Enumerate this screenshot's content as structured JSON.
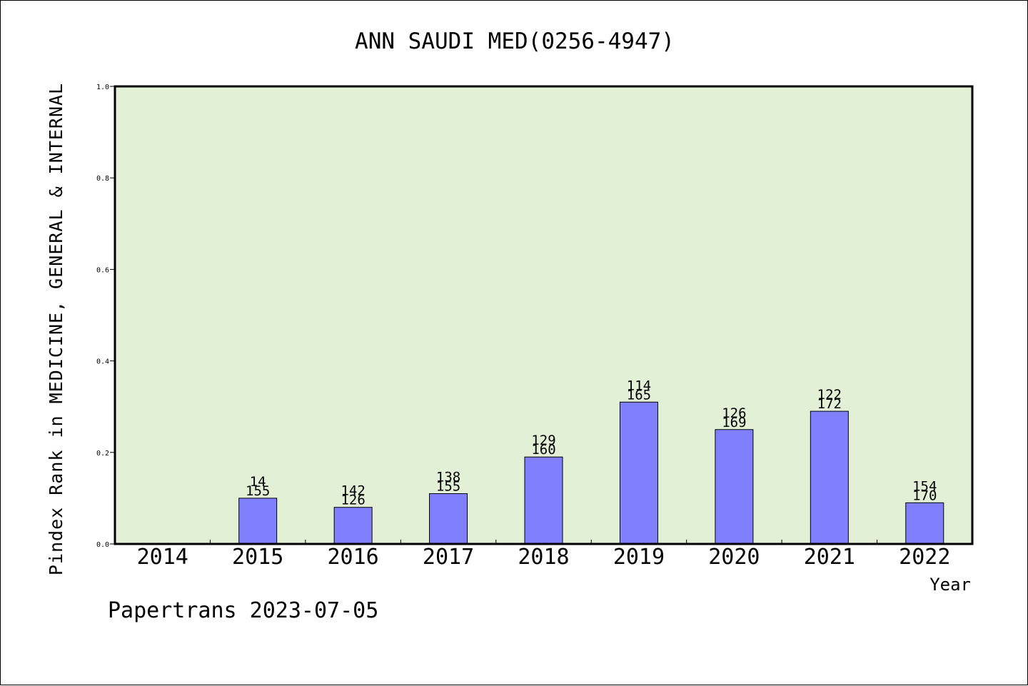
{
  "chart_data": {
    "type": "bar",
    "title": "ANN SAUDI MED(0256-4947)",
    "ylabel": "Pindex Rank in MEDICINE, GENERAL & INTERNAL",
    "xlabel": "Year",
    "ylim": [
      0,
      1.0
    ],
    "yticks": [
      "0.0",
      "0.2",
      "0.4",
      "0.6",
      "0.8",
      "1.0"
    ],
    "categories": [
      "2014",
      "2015",
      "2016",
      "2017",
      "2018",
      "2019",
      "2020",
      "2021",
      "2022"
    ],
    "values": [
      0,
      0.1,
      0.08,
      0.11,
      0.19,
      0.31,
      0.25,
      0.29,
      0.09
    ],
    "rank_labels": [
      "",
      "14",
      "142",
      "138",
      "129",
      "114",
      "126",
      "122",
      "154"
    ],
    "total_labels": [
      "",
      "155",
      "126",
      "155",
      "160",
      "165",
      "169",
      "172",
      "170"
    ],
    "grid": false,
    "legend": "none"
  },
  "footer": "Papertrans 2023-07-05",
  "colors": {
    "plot_background": "#e2f0d6",
    "bar_fill": "#8080ff",
    "bar_stroke": "#000000"
  }
}
